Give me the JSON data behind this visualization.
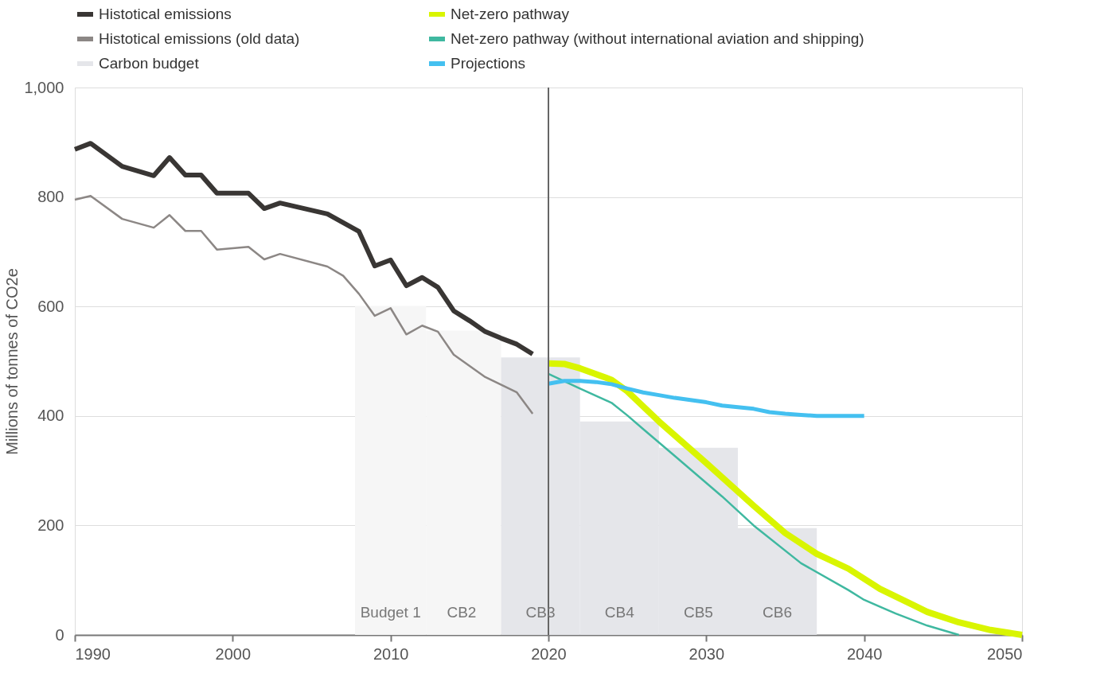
{
  "chart_data": {
    "type": "line",
    "ylabel": "Millions of tonnes of CO2e",
    "xlim": [
      1990,
      2050
    ],
    "xticks": [
      1990,
      2000,
      2010,
      2020,
      2030,
      2040,
      2050
    ],
    "ylim": [
      0,
      1000
    ],
    "yticks": [
      0,
      200,
      400,
      600,
      800,
      {
        "value": 1000,
        "label": "1,000"
      }
    ],
    "grid": "y",
    "legend": "top",
    "series": [
      {
        "name": "Histotical emissions",
        "color": "#393634",
        "x": [
          1990,
          1991,
          1993,
          1995,
          1996,
          1997,
          1998,
          1999,
          2001,
          2002,
          2003,
          2006,
          2008,
          2009,
          2010,
          2011,
          2012,
          2013,
          2014,
          2015,
          2016,
          2017,
          2018,
          2019
        ],
        "values": [
          887,
          898,
          856,
          839,
          872,
          840,
          840,
          807,
          807,
          779,
          789,
          769,
          737,
          674,
          685,
          638,
          653,
          635,
          592,
          574,
          554,
          542,
          531,
          513
        ]
      },
      {
        "name": "Histotical emissions (old data)",
        "color": "#8c8785",
        "x": [
          1990,
          1991,
          1993,
          1995,
          1996,
          1997,
          1998,
          1999,
          2001,
          2002,
          2003,
          2006,
          2007,
          2008,
          2009,
          2010,
          2011,
          2012,
          2013,
          2014,
          2016,
          2018,
          2019
        ],
        "values": [
          795,
          802,
          760,
          744,
          767,
          738,
          738,
          704,
          709,
          686,
          696,
          673,
          656,
          623,
          583,
          597,
          549,
          565,
          554,
          512,
          471,
          443,
          404
        ]
      },
      {
        "name": "Carbon budget",
        "type": "bar",
        "color": "#e5e6ea",
        "x": [
          2010,
          2014.5,
          2019.5,
          2024.5,
          2029.5,
          2034.5
        ],
        "values": [
          601,
          556,
          507,
          390,
          342,
          195
        ],
        "colors": [
          "#f6f6f6",
          "#f6f6f6",
          "#e5e6ea",
          "#e5e6ea",
          "#e5e6ea",
          "#e5e6ea"
        ]
      },
      {
        "name": "Net-zero pathway",
        "color": "#d9f500",
        "x": [
          2020,
          2021,
          2022,
          2024,
          2025,
          2027,
          2030,
          2033,
          2035,
          2037,
          2039,
          2041,
          2043,
          2044,
          2046,
          2048,
          2050
        ],
        "values": [
          496,
          495,
          487,
          466,
          445,
          390,
          314,
          236,
          186,
          148,
          121,
          84,
          56,
          42,
          23,
          9,
          0
        ]
      },
      {
        "name": "Net-zero pathway (without international aviation and shipping)",
        "color": "#3fb8a0",
        "x": [
          2020,
          2022,
          2024,
          2025,
          2026,
          2028,
          2031,
          2033,
          2036,
          2039,
          2040,
          2042,
          2044,
          2046
        ],
        "values": [
          477,
          450,
          424,
          401,
          376,
          327,
          253,
          200,
          131,
          82,
          64,
          39,
          17,
          0
        ]
      },
      {
        "name": "Projections",
        "color": "#44c0f0",
        "x": [
          2020,
          2021,
          2022,
          2023,
          2024,
          2025,
          2026,
          2027,
          2028,
          2029,
          2030,
          2031,
          2032,
          2033,
          2034,
          2035,
          2036,
          2037,
          2038,
          2039,
          2040
        ],
        "values": [
          459,
          464,
          464,
          462,
          458,
          450,
          443,
          438,
          433,
          429,
          425,
          419,
          416,
          413,
          407,
          404,
          402,
          400,
          400,
          400,
          400
        ]
      }
    ],
    "ref_lines": [
      {
        "axis": "x",
        "value": 2020,
        "color": "#666666"
      }
    ],
    "annotations": [
      "Budget 1",
      "CB2",
      "CB3",
      "CB4",
      "CB5",
      "CB6"
    ]
  }
}
